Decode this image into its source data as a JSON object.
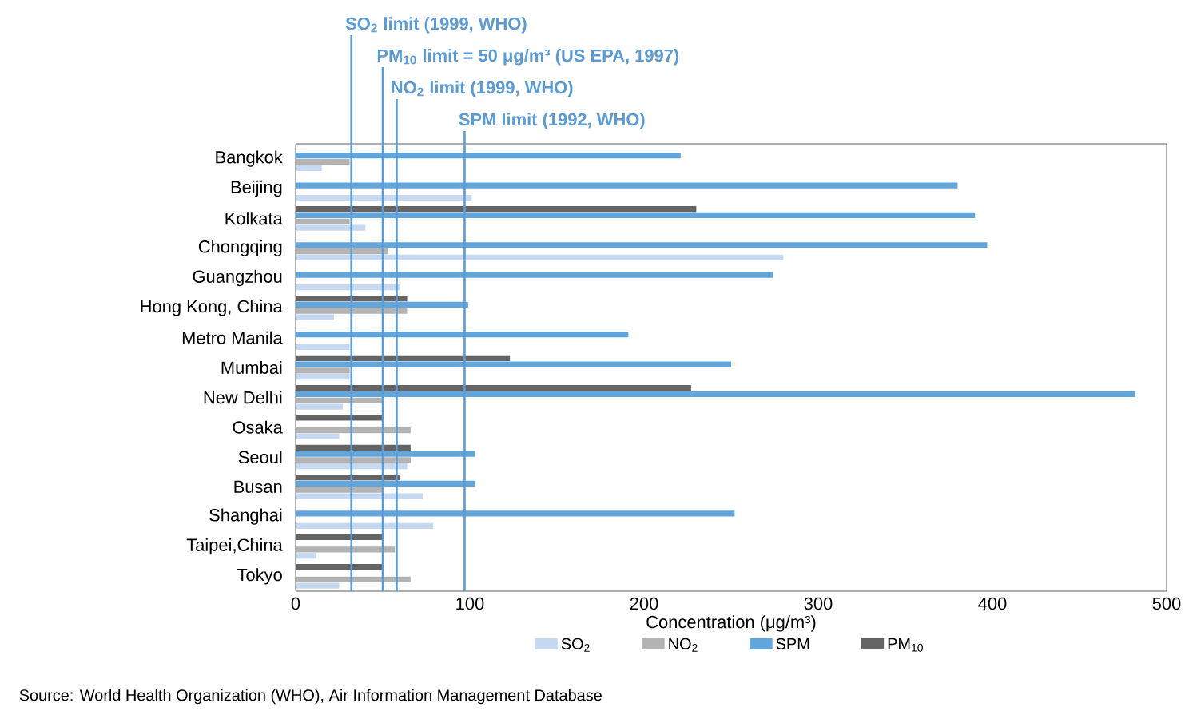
{
  "chart_data": {
    "type": "bar",
    "orientation": "horizontal",
    "categories": [
      "Bangkok",
      "Beijing",
      "Kolkata",
      "Chongqing",
      "Guangzhou",
      "Hong Kong, China",
      "Metro Manila",
      "Mumbai",
      "New Delhi",
      "Osaka",
      "Seoul",
      "Busan",
      "Shanghai",
      "Taipei,China",
      "Tokyo"
    ],
    "series": [
      {
        "name": "SO$_{2}$",
        "color": "#c6d9f1",
        "values": [
          15,
          101,
          40,
          280,
          60,
          22,
          31,
          31,
          27,
          25,
          64,
          73,
          79,
          12,
          25
        ]
      },
      {
        "name": "NO$_{2}$",
        "color": "#b3b3b3",
        "values": [
          31,
          null,
          31,
          53,
          null,
          64,
          null,
          31,
          50,
          66,
          66,
          50,
          null,
          57,
          66
        ]
      },
      {
        "name": "SPM",
        "color": "#63a6dc",
        "values": [
          221,
          380,
          390,
          397,
          274,
          99,
          191,
          250,
          482,
          null,
          103,
          103,
          252,
          null,
          null
        ]
      },
      {
        "name": "PM$_{10}$",
        "color": "#646464",
        "values": [
          null,
          null,
          230,
          null,
          null,
          64,
          null,
          123,
          227,
          50,
          66,
          60,
          null,
          50,
          50
        ]
      }
    ],
    "xlim": [
      0,
      500
    ],
    "xticks": [
      0,
      100,
      200,
      300,
      400,
      500
    ],
    "xlabel": "Concentration (μg/m³)",
    "ref_lines": [
      {
        "axis": "x",
        "value": 32,
        "label": "SO$_{2}$ limit (1999, WHO)",
        "color": "#5b9bd5"
      },
      {
        "axis": "x",
        "value": 50,
        "label": "PM$_{10}$ limit = 50 μg/m³ (US EPA, 1997)",
        "color": "#5b9bd5"
      },
      {
        "axis": "x",
        "value": 58,
        "label": "NO$_{2}$ limit (1999, WHO)",
        "color": "#5b9bd5"
      },
      {
        "axis": "x",
        "value": 97,
        "label": "SPM limit (1992, WHO)",
        "color": "#5b9bd5"
      }
    ],
    "legend": "bottom",
    "annotations": [
      "Source: World Health Organization (WHO), Air Information Management Database"
    ]
  }
}
